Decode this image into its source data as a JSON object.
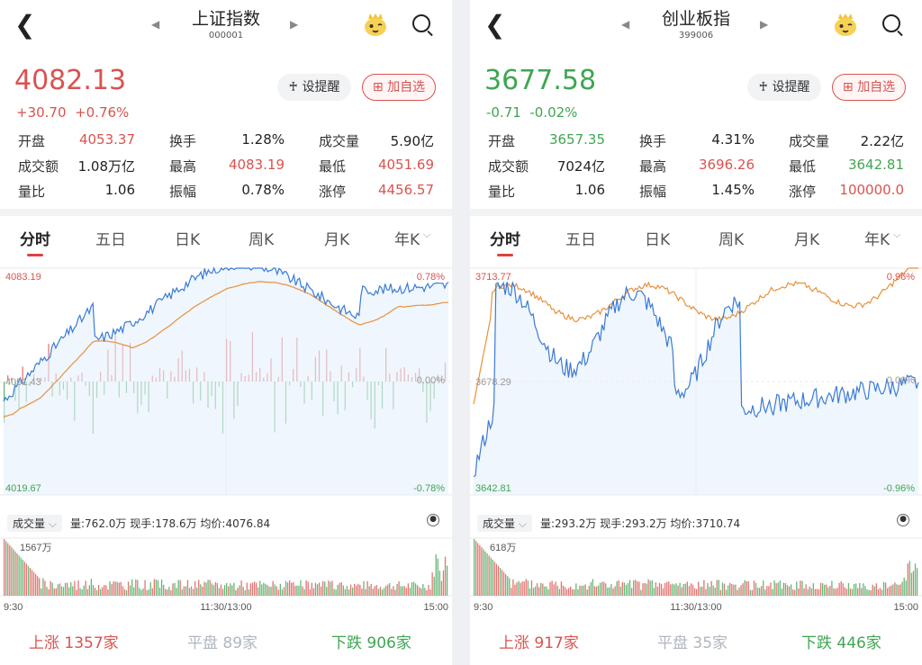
{
  "colors": {
    "up": "#d9534f",
    "down": "#3fa652",
    "flat": "#b0b6c0",
    "line_index": "#3a7bd5",
    "line_avg": "#e8913a"
  },
  "panels": [
    {
      "title": "上证指数",
      "code": "000001",
      "price": "4082.13",
      "change": "+30.70",
      "change_pct": "+0.76%",
      "trend": "up",
      "remind_label": "设提醒",
      "add_label": "加自选",
      "stats": [
        [
          {
            "label": "开盘",
            "value": "4053.37",
            "color": "up"
          },
          {
            "label": "换手",
            "value": "1.28%",
            "color": "none"
          },
          {
            "label": "成交量",
            "value": "5.90亿",
            "color": "none"
          }
        ],
        [
          {
            "label": "成交额",
            "value": "1.08万亿",
            "color": "none"
          },
          {
            "label": "最高",
            "value": "4083.19",
            "color": "up"
          },
          {
            "label": "最低",
            "value": "4051.69",
            "color": "up"
          }
        ],
        [
          {
            "label": "量比",
            "value": "1.06",
            "color": "none"
          },
          {
            "label": "振幅",
            "value": "0.78%",
            "color": "none"
          },
          {
            "label": "涨停",
            "value": "4456.57",
            "color": "up"
          }
        ]
      ],
      "tabs": [
        "分时",
        "五日",
        "日K",
        "周K",
        "月K",
        "年K"
      ],
      "chart": {
        "high": "4083.19",
        "low": "4019.67",
        "mid": "4051.43",
        "high_pct": "0.78%",
        "low_pct": "-0.78%",
        "mid_pct": "0.00%"
      },
      "vol_label": "成交量",
      "vol_info": "量:762.0万  现手:178.6万  均价:4076.84",
      "vol_max": "1567万",
      "time_start": "9:30",
      "time_mid": "11:30/13:00",
      "time_end": "15:00",
      "rise_label": "上涨",
      "rise": "1357家",
      "flat_label": "平盘",
      "flat": "89家",
      "fall_label": "下跌",
      "fall": "906家"
    },
    {
      "title": "创业板指",
      "code": "399006",
      "price": "3677.58",
      "change": "-0.71",
      "change_pct": "-0.02%",
      "trend": "down",
      "remind_label": "设提醒",
      "add_label": "加自选",
      "stats": [
        [
          {
            "label": "开盘",
            "value": "3657.35",
            "color": "down"
          },
          {
            "label": "换手",
            "value": "4.31%",
            "color": "none"
          },
          {
            "label": "成交量",
            "value": "2.22亿",
            "color": "none"
          }
        ],
        [
          {
            "label": "成交额",
            "value": "7024亿",
            "color": "none"
          },
          {
            "label": "最高",
            "value": "3696.26",
            "color": "up"
          },
          {
            "label": "最低",
            "value": "3642.81",
            "color": "down"
          }
        ],
        [
          {
            "label": "量比",
            "value": "1.06",
            "color": "none"
          },
          {
            "label": "振幅",
            "value": "1.45%",
            "color": "none"
          },
          {
            "label": "涨停",
            "value": "100000.0",
            "color": "up"
          }
        ]
      ],
      "tabs": [
        "分时",
        "五日",
        "日K",
        "周K",
        "月K",
        "年K"
      ],
      "chart": {
        "high": "3713.77",
        "low": "3642.81",
        "mid": "3678.29",
        "high_pct": "0.96%",
        "low_pct": "-0.96%",
        "mid_pct": "0.00%"
      },
      "vol_label": "成交量",
      "vol_info": "量:293.2万  现手:293.2万  均价:3710.74",
      "vol_max": "618万",
      "time_start": "9:30",
      "time_mid": "11:30/13:00",
      "time_end": "15:00",
      "rise_label": "上涨",
      "rise": "917家",
      "flat_label": "平盘",
      "flat": "35家",
      "fall_label": "下跌",
      "fall": "446家"
    }
  ]
}
